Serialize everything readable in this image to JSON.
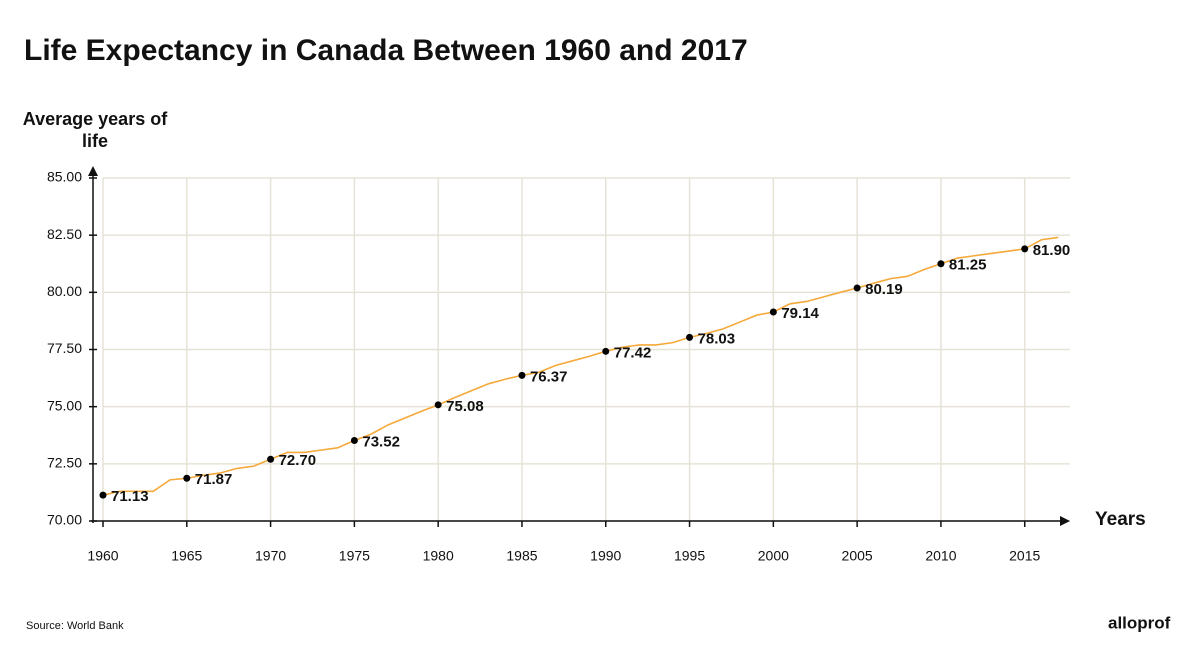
{
  "chart_data": {
    "type": "line",
    "title": "Life Expectancy in Canada Between 1960 and 2017",
    "y_label": "Average years of life",
    "x_label": "Years",
    "source": "Source: World Bank",
    "brand": "alloprof",
    "x": [
      1960,
      1961,
      1962,
      1963,
      1964,
      1965,
      1966,
      1967,
      1968,
      1969,
      1970,
      1971,
      1972,
      1973,
      1974,
      1975,
      1976,
      1977,
      1978,
      1979,
      1980,
      1981,
      1982,
      1983,
      1984,
      1985,
      1986,
      1987,
      1988,
      1989,
      1990,
      1991,
      1992,
      1993,
      1994,
      1995,
      1996,
      1997,
      1998,
      1999,
      2000,
      2001,
      2002,
      2003,
      2004,
      2005,
      2006,
      2007,
      2008,
      2009,
      2010,
      2011,
      2012,
      2013,
      2014,
      2015,
      2016,
      2017
    ],
    "series": [
      {
        "color": "#f5a93b",
        "values": [
          71.13,
          71.3,
          71.3,
          71.3,
          71.8,
          71.87,
          72.0,
          72.1,
          72.3,
          72.4,
          72.7,
          73.0,
          73.0,
          73.1,
          73.2,
          73.52,
          73.8,
          74.2,
          74.5,
          74.8,
          75.08,
          75.4,
          75.7,
          76.0,
          76.2,
          76.37,
          76.5,
          76.8,
          77.0,
          77.2,
          77.42,
          77.6,
          77.7,
          77.7,
          77.8,
          78.03,
          78.2,
          78.4,
          78.7,
          79.0,
          79.14,
          79.5,
          79.6,
          79.8,
          80.0,
          80.19,
          80.4,
          80.6,
          80.7,
          81.0,
          81.25,
          81.5,
          81.6,
          81.7,
          81.8,
          81.9,
          82.3,
          82.4
        ]
      },
      {
        "color": "#000000",
        "values": [
          71.13,
          null,
          null,
          null,
          null,
          71.87,
          null,
          null,
          null,
          null,
          72.7,
          null,
          null,
          null,
          null,
          73.52,
          null,
          null,
          null,
          null,
          75.08,
          null,
          null,
          null,
          null,
          76.37,
          null,
          null,
          null,
          null,
          77.42,
          null,
          null,
          null,
          null,
          78.03,
          null,
          null,
          null,
          null,
          79.14,
          null,
          null,
          null,
          null,
          80.19,
          null,
          null,
          null,
          null,
          81.25,
          null,
          null,
          null,
          null,
          81.9,
          null,
          null
        ],
        "value_labels": [
          "71.13",
          null,
          null,
          null,
          null,
          "71.87",
          null,
          null,
          null,
          null,
          "72.70",
          null,
          null,
          null,
          null,
          "73.52",
          null,
          null,
          null,
          null,
          "75.08",
          null,
          null,
          null,
          null,
          "76.37",
          null,
          null,
          null,
          null,
          "77.42",
          null,
          null,
          null,
          null,
          "78.03",
          null,
          null,
          null,
          null,
          "79.14",
          null,
          null,
          null,
          null,
          "80.19",
          null,
          null,
          null,
          null,
          "81.25",
          null,
          null,
          null,
          null,
          "81.90",
          null,
          null
        ]
      }
    ],
    "xlim": [
      1960,
      2018
    ],
    "xticks": [
      1960,
      1965,
      1970,
      1975,
      1980,
      1985,
      1990,
      1995,
      2000,
      2005,
      2010,
      2015
    ],
    "ylim": [
      70,
      85
    ],
    "yticks": [
      {
        "value": 70,
        "label": "70.00"
      },
      {
        "value": 72.5,
        "label": "72.50"
      },
      {
        "value": 75,
        "label": "75.00"
      },
      {
        "value": 77.5,
        "label": "77.50"
      },
      {
        "value": 80,
        "label": "80.00"
      },
      {
        "value": 82.5,
        "label": "82.50"
      },
      {
        "value": 85,
        "label": "85.00"
      }
    ],
    "grid": true
  }
}
